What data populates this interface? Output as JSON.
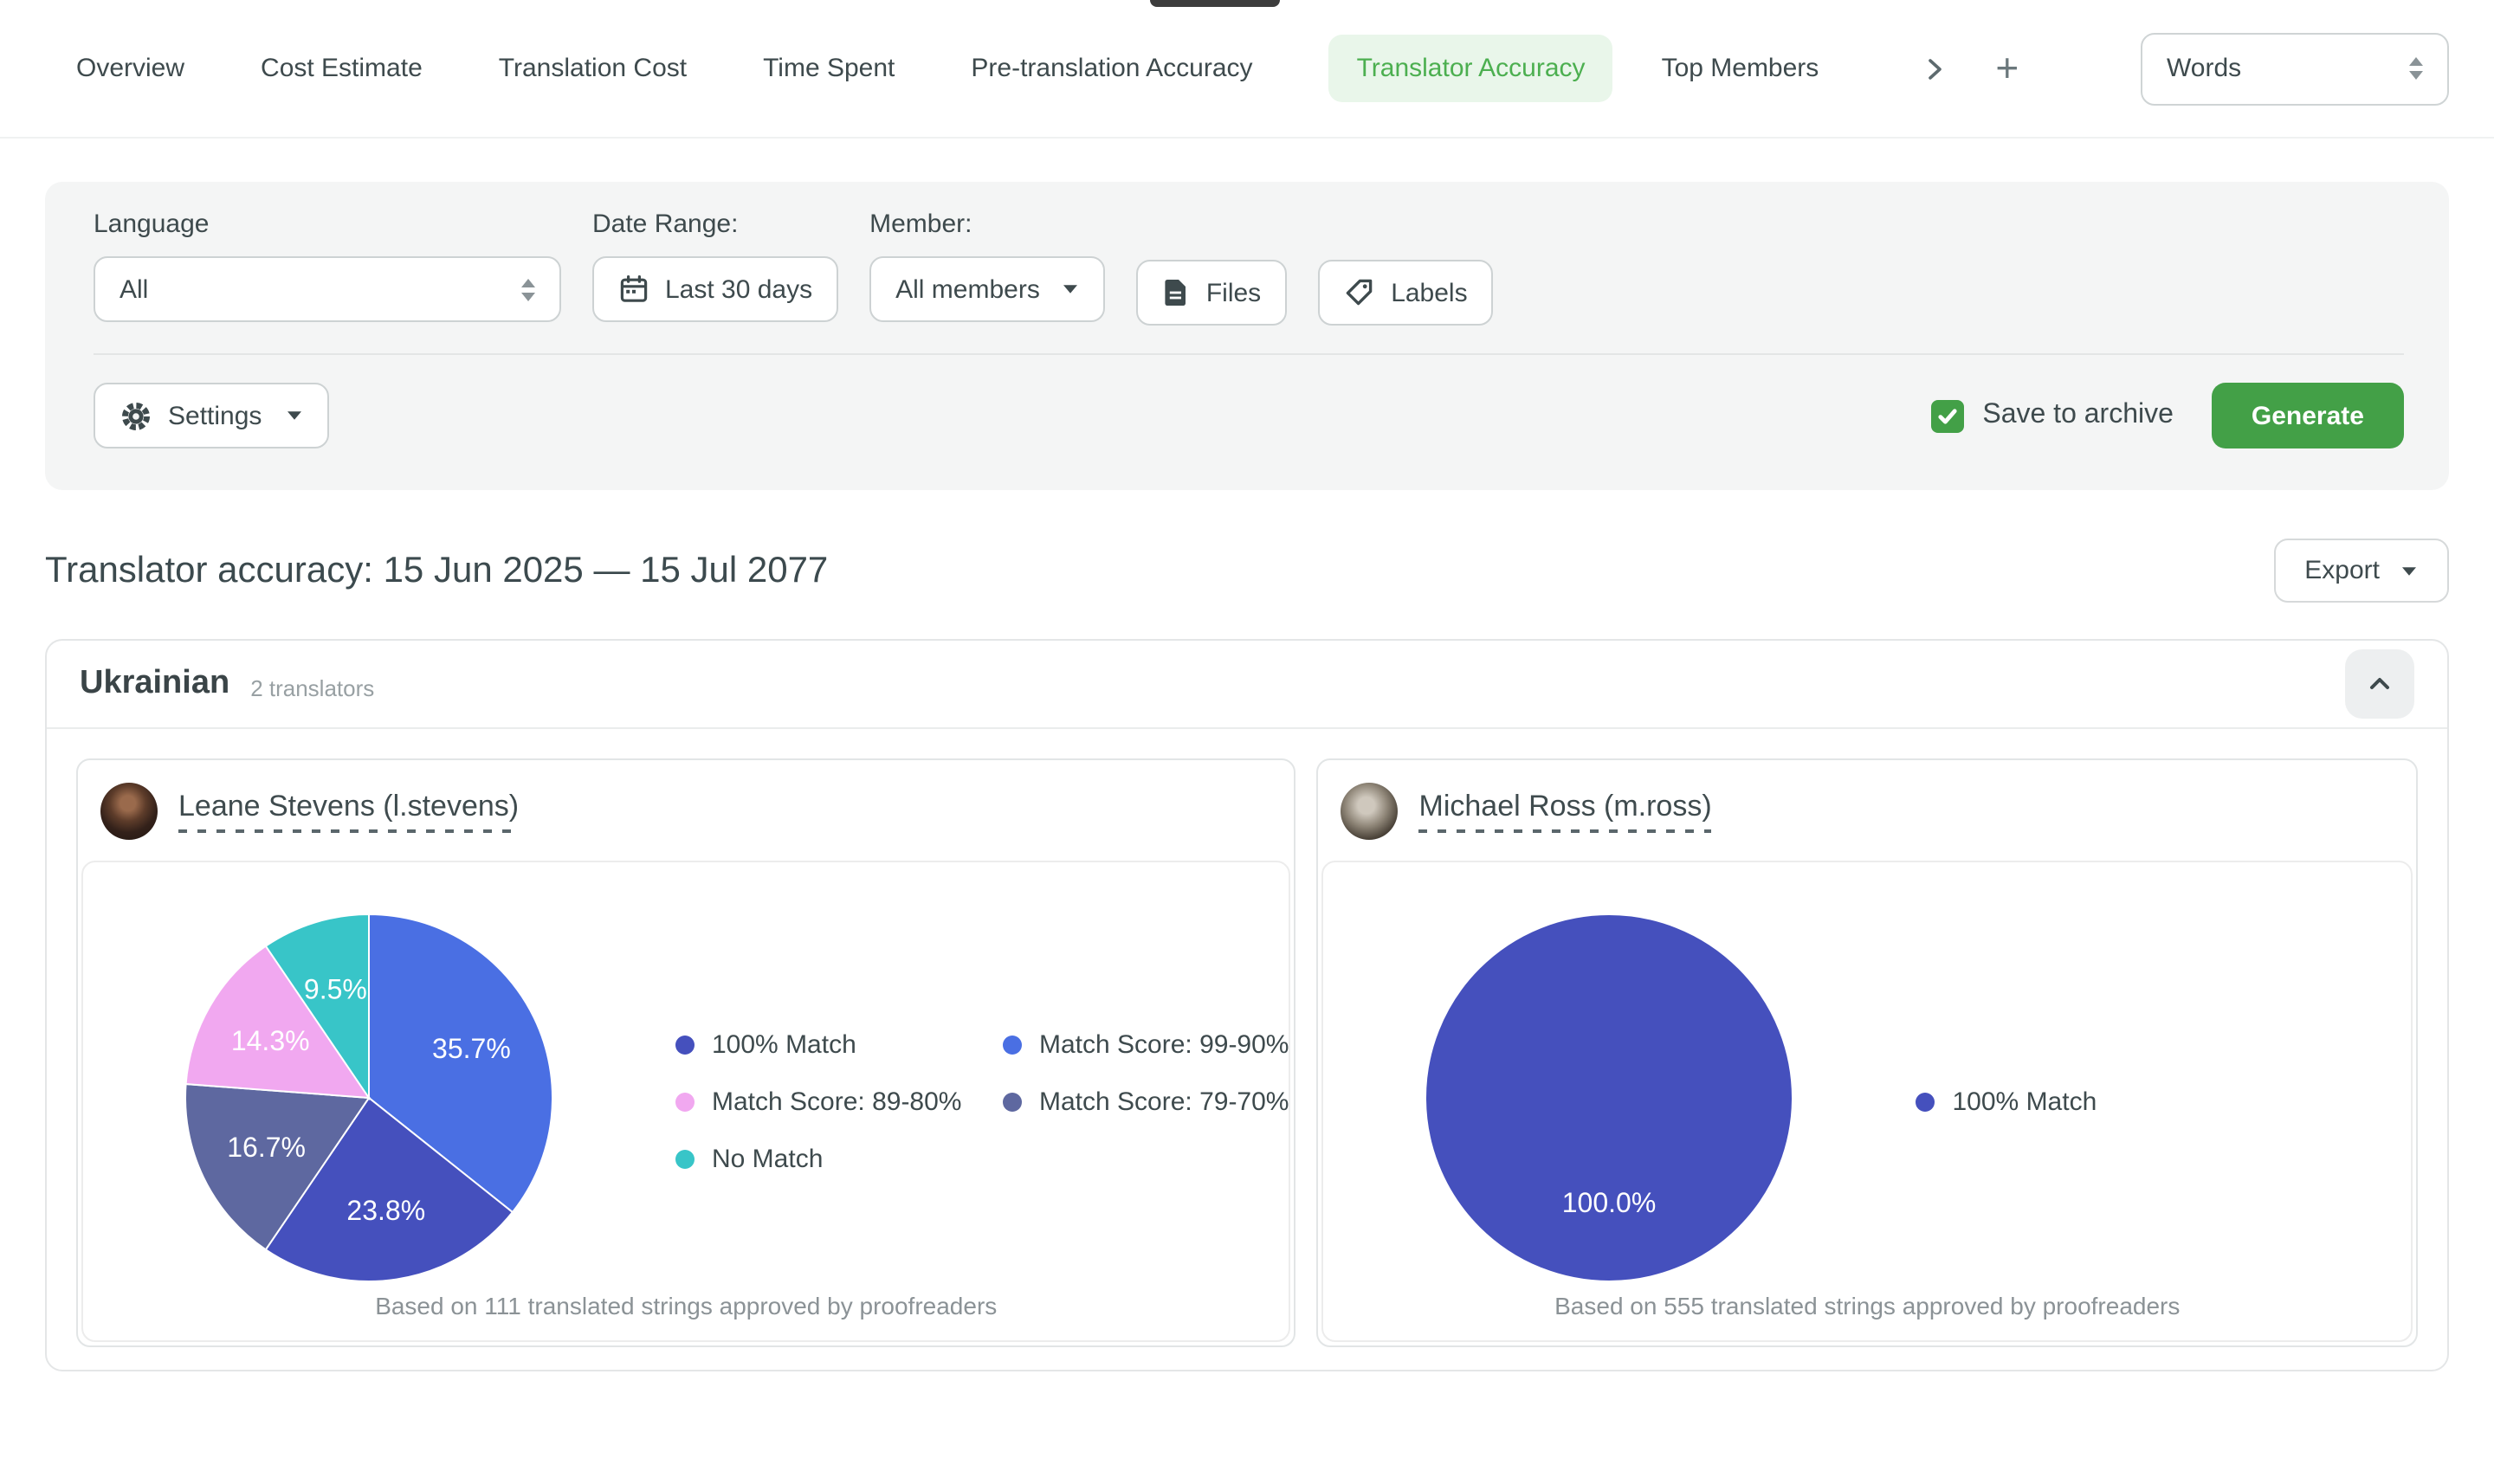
{
  "tabs": {
    "items": [
      {
        "label": "Overview"
      },
      {
        "label": "Cost Estimate"
      },
      {
        "label": "Translation Cost"
      },
      {
        "label": "Time Spent"
      },
      {
        "label": "Pre-translation Accuracy"
      },
      {
        "label": "Translator Accuracy"
      },
      {
        "label": "Top Members"
      }
    ],
    "active_tab": "Translator Accuracy",
    "add_label": "+",
    "unit_select_value": "Words"
  },
  "filters": {
    "language_label": "Language",
    "language_value": "All",
    "date_range_label": "Date Range:",
    "date_range_value": "Last 30 days",
    "member_label": "Member:",
    "member_value": "All members",
    "files_label": "Files",
    "labels_label": "Labels",
    "settings_label": "Settings",
    "save_to_archive_label": "Save to archive",
    "save_to_archive_checked": true,
    "generate_label": "Generate"
  },
  "report": {
    "title": "Translator accuracy: 15 Jun 2025 — 15 Jul 2077",
    "export_label": "Export"
  },
  "language_section": {
    "language": "Ukrainian",
    "translators_count": "2 translators",
    "translators": [
      {
        "name": "Leane Stevens (l.stevens)",
        "caption": "Based on 111 translated strings approved by proofreaders"
      },
      {
        "name": "Michael Ross (m.ross)",
        "caption": "Based on 555 translated strings approved by proofreaders"
      }
    ]
  },
  "chart_data": [
    {
      "type": "pie",
      "title": "Leane Stevens (l.stevens) — translator accuracy",
      "legend_position": "right",
      "legend_columns": 2,
      "value_unit": "%",
      "series": [
        {
          "name": "100% Match",
          "value": 23.8,
          "color": "#4550bd"
        },
        {
          "name": "Match Score: 99-90%",
          "value": 35.7,
          "color": "#4a6fe3"
        },
        {
          "name": "Match Score: 89-80%",
          "value": 14.3,
          "color": "#f1a8f0"
        },
        {
          "name": "Match Score: 79-70%",
          "value": 16.7,
          "color": "#5e68a0"
        },
        {
          "name": "No Match",
          "value": 9.5,
          "color": "#38c5c8"
        }
      ],
      "slice_labels": [
        "35.7%",
        "23.8%",
        "16.7%",
        "14.3%",
        "9.5%"
      ],
      "note": "Based on 111 translated strings approved by proofreaders"
    },
    {
      "type": "pie",
      "title": "Michael Ross (m.ross) — translator accuracy",
      "legend_position": "right",
      "legend_columns": 1,
      "value_unit": "%",
      "series": [
        {
          "name": "100% Match",
          "value": 100.0,
          "color": "#4550bd"
        }
      ],
      "slice_labels": [
        "100.0%"
      ],
      "note": "Based on 555 translated strings approved by proofreaders"
    }
  ],
  "colors": {
    "accent_green": "#43a047",
    "active_tab_text": "#4caf50",
    "active_tab_bg": "#e9f6ea",
    "panel_bg": "#f4f5f5"
  }
}
